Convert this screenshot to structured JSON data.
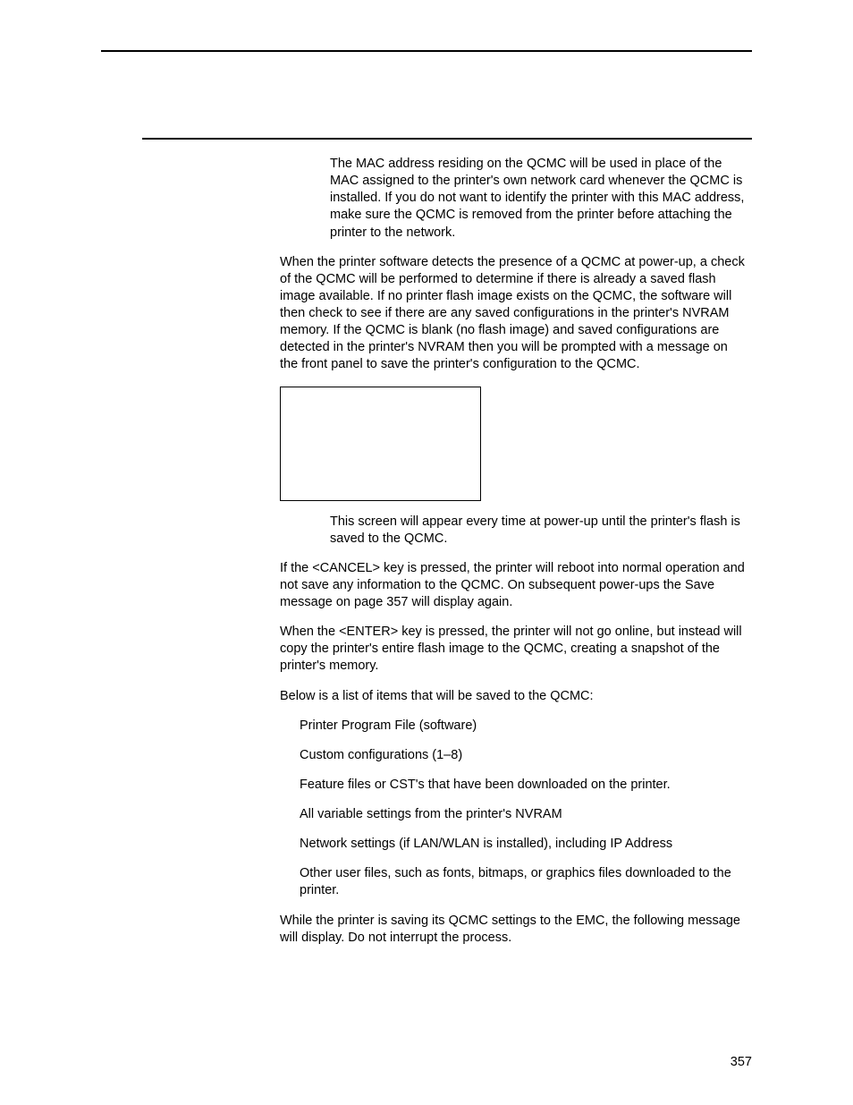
{
  "note1": "The MAC address residing on the QCMC will be used in place of the MAC assigned to the printer's own network card whenever the QCMC is installed. If you do not want to identify the printer with this MAC address, make sure the QCMC is removed from the printer before attaching the printer to the network.",
  "para1": "When the printer software detects the presence of a QCMC at power-up, a check of the QCMC will be performed to determine if there is already a saved flash image available. If no printer flash image exists on the QCMC, the software will then check to see if there are any saved configurations in the printer's NVRAM memory. If the QCMC is blank (no flash image) and saved configurations are detected in the printer's NVRAM then you will be prompted with a message on the front panel to save the printer's configuration to the QCMC.",
  "note2": "This screen will appear every time at power-up until the printer's flash is saved to the QCMC.",
  "para2": "If the <CANCEL> key is pressed, the printer will reboot into normal operation and not save any information to the QCMC. On subsequent power-ups the Save message on page 357 will display again.",
  "para3": "When the <ENTER> key is pressed, the printer will not go online, but instead will copy the printer's entire flash image to the QCMC, creating a snapshot of the printer's memory.",
  "para4": "Below is a list of items that will be saved to the QCMC:",
  "list": [
    "Printer Program File (software)",
    "Custom configurations (1–8)",
    "Feature files or CST's that have been downloaded on the printer.",
    "All variable settings from the printer's NVRAM",
    "Network settings (if LAN/WLAN is installed), including IP Address",
    "Other user files, such as fonts, bitmaps, or graphics files downloaded to the printer."
  ],
  "para5": "While the printer is saving its QCMC settings to the EMC, the following message will display. Do not interrupt the process.",
  "page_number": "357"
}
